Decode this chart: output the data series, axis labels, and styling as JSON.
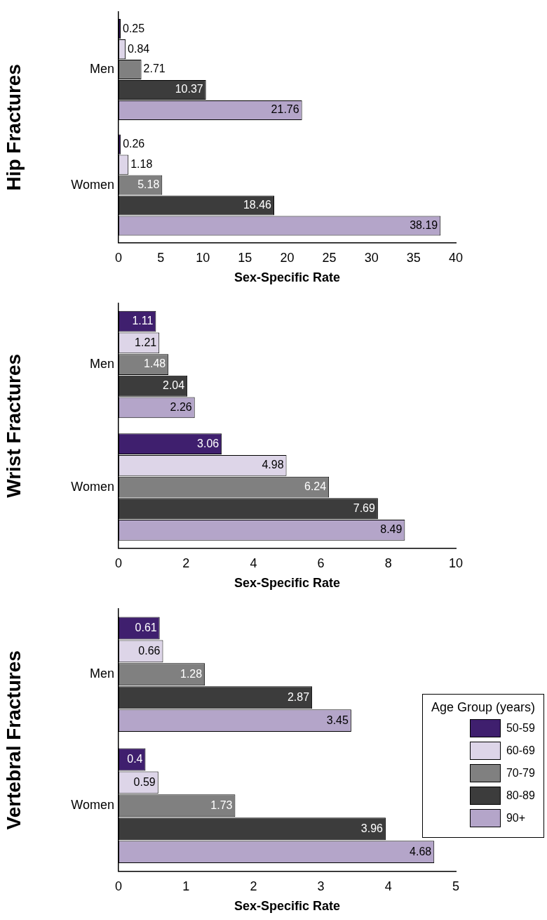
{
  "chart_data": [
    {
      "type": "bar",
      "orientation": "horizontal",
      "ylabel": "Hip Fractures",
      "xlabel": "Sex-Specific Rate",
      "categories": [
        "Men",
        "Women"
      ],
      "xlim": [
        0,
        40
      ],
      "xticks": [
        0,
        5,
        10,
        15,
        20,
        25,
        30,
        35,
        40
      ],
      "data_labels": true,
      "series": [
        {
          "color": "#3f1f6e",
          "values": [
            0.25,
            0.26
          ]
        },
        {
          "color": "#ddd5e8",
          "values": [
            0.84,
            1.18
          ]
        },
        {
          "color": "#808080",
          "values": [
            2.71,
            5.18
          ]
        },
        {
          "color": "#3c3c3c",
          "values": [
            10.37,
            18.46
          ]
        },
        {
          "color": "#b4a5c9",
          "values": [
            21.76,
            38.19
          ]
        }
      ]
    },
    {
      "type": "bar",
      "orientation": "horizontal",
      "ylabel": "Wrist Fractures",
      "xlabel": "Sex-Specific Rate",
      "categories": [
        "Men",
        "Women"
      ],
      "xlim": [
        0,
        10
      ],
      "xticks": [
        0,
        2,
        4,
        6,
        8,
        10
      ],
      "data_labels": true,
      "series": [
        {
          "color": "#3f1f6e",
          "values": [
            1.11,
            3.06
          ]
        },
        {
          "color": "#ddd5e8",
          "values": [
            1.21,
            4.98
          ]
        },
        {
          "color": "#808080",
          "values": [
            1.48,
            6.24
          ]
        },
        {
          "color": "#3c3c3c",
          "values": [
            2.04,
            7.69
          ]
        },
        {
          "color": "#b4a5c9",
          "values": [
            2.26,
            8.49
          ]
        }
      ]
    },
    {
      "type": "bar",
      "orientation": "horizontal",
      "ylabel": "Vertebral Fractures",
      "xlabel": "Sex-Specific Rate",
      "categories": [
        "Men",
        "Women"
      ],
      "xlim": [
        0,
        5
      ],
      "xticks": [
        0,
        1,
        2,
        3,
        4,
        5
      ],
      "data_labels": true,
      "legend": "right",
      "legend_title": "Age Group (years)",
      "series": [
        {
          "name": "50-59",
          "color": "#3f1f6e",
          "values": [
            0.61,
            0.4
          ]
        },
        {
          "name": "60-69",
          "color": "#ddd5e8",
          "values": [
            0.66,
            0.59
          ]
        },
        {
          "name": "70-79",
          "color": "#808080",
          "values": [
            1.28,
            1.73
          ]
        },
        {
          "name": "80-89",
          "color": "#3c3c3c",
          "values": [
            2.87,
            3.96
          ]
        },
        {
          "name": "90+",
          "color": "#b4a5c9",
          "values": [
            3.45,
            4.68
          ]
        }
      ]
    }
  ]
}
